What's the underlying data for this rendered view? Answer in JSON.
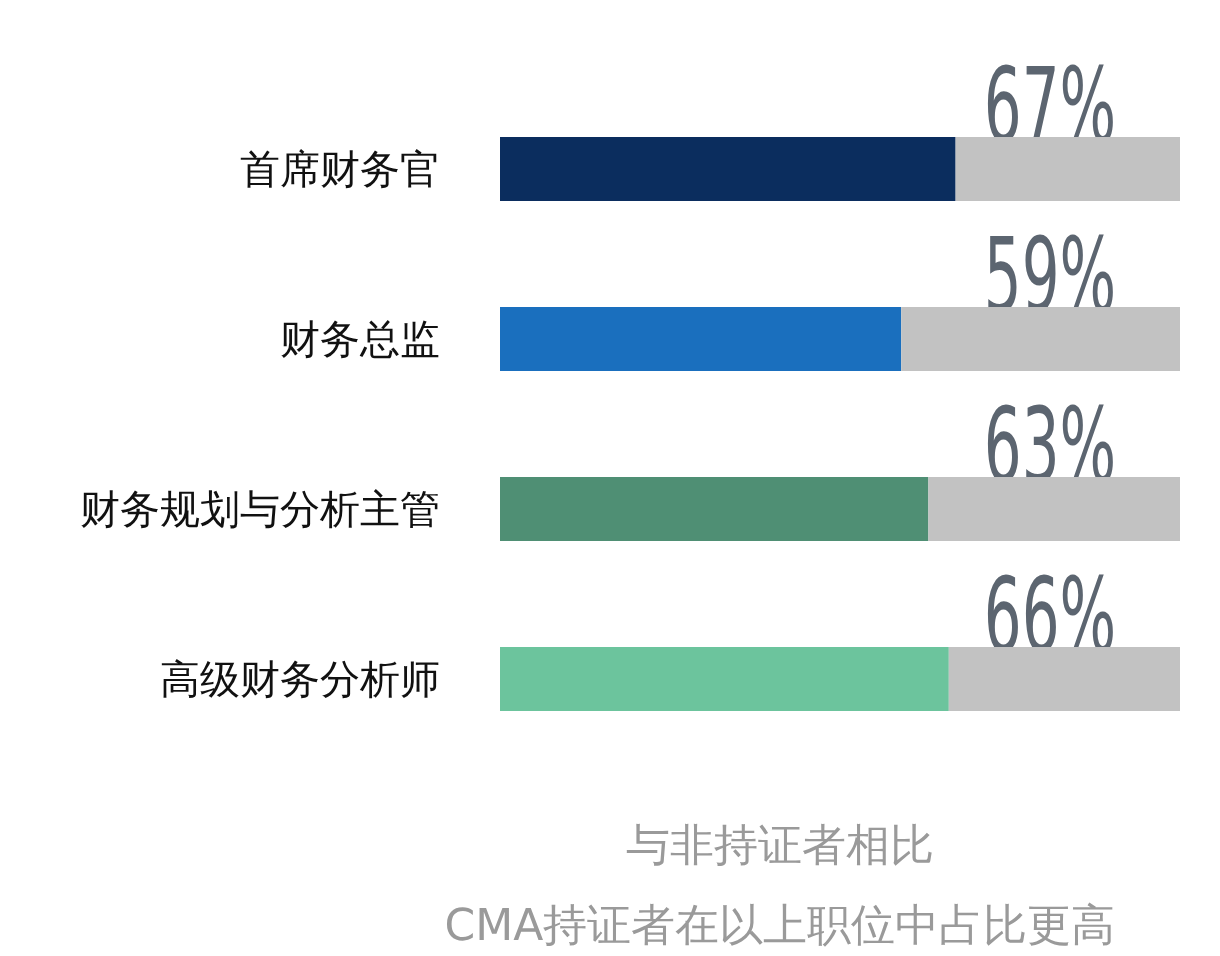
{
  "chart_data": {
    "type": "bar",
    "orientation": "horizontal",
    "stacked": true,
    "categories": [
      "首席财务官",
      "财务总监",
      "财务规划与分析主管",
      "高级财务分析师"
    ],
    "series": [
      {
        "colors": [
          "#0b2d5e",
          "#1a6fbe",
          "#4f8f74",
          "#6cc49d"
        ],
        "values": [
          67,
          59,
          63,
          66
        ],
        "value_labels": [
          "67%",
          "59%",
          "63%",
          "66%"
        ]
      },
      {
        "color": "#c2c2c2",
        "values": [
          33,
          41,
          37,
          34
        ]
      }
    ],
    "annotations": [
      "与非持证者相比",
      "CMA持证者在以上职位中占比更高"
    ]
  }
}
